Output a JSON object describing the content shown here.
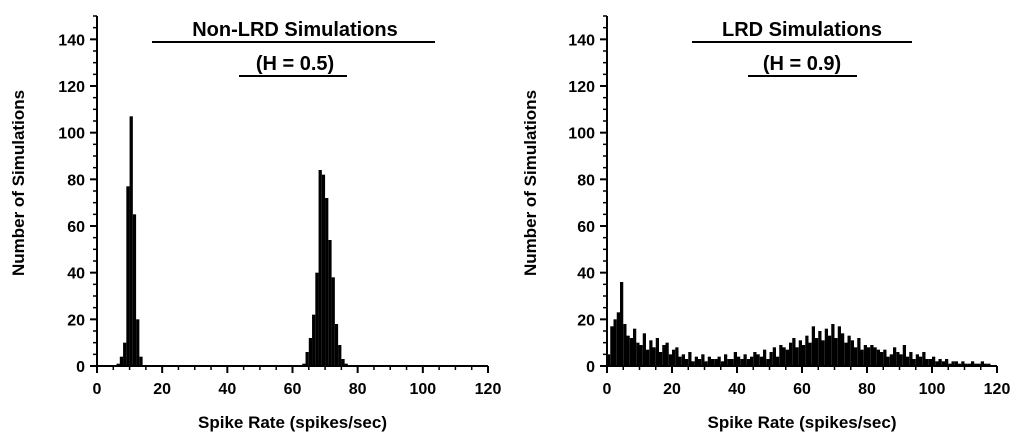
{
  "chart_data": [
    {
      "type": "bar",
      "title": "Non-LRD Simulations",
      "subtitle": "(H = 0.5)",
      "xlabel": "Spike Rate (spikes/sec)",
      "ylabel": "Number of Simulations",
      "xlim": [
        0,
        120
      ],
      "ylim": [
        0,
        150
      ],
      "xticks": [
        0,
        20,
        40,
        60,
        80,
        100,
        120
      ],
      "yticks": [
        0,
        20,
        40,
        60,
        80,
        100,
        120,
        140
      ],
      "bin_width": 1,
      "x": [
        6.5,
        7.5,
        8.5,
        9.5,
        10.5,
        11.5,
        12.5,
        13.5,
        63.5,
        64.5,
        65.5,
        66.5,
        67.5,
        68.5,
        69.5,
        70.5,
        71.5,
        72.5,
        73.5,
        74.5,
        75.5,
        76.5
      ],
      "values": [
        1,
        4,
        10,
        77,
        107,
        65,
        20,
        4,
        1,
        6,
        12,
        22,
        40,
        84,
        82,
        72,
        54,
        38,
        18,
        9,
        3,
        1
      ]
    },
    {
      "type": "bar",
      "title": "LRD Simulations",
      "subtitle": "(H = 0.9)",
      "xlabel": "Spike Rate (spikes/sec)",
      "ylabel": "Number of Simulations",
      "xlim": [
        0,
        120
      ],
      "ylim": [
        0,
        150
      ],
      "xticks": [
        0,
        20,
        40,
        60,
        80,
        100,
        120
      ],
      "yticks": [
        0,
        20,
        40,
        60,
        80,
        100,
        120,
        140
      ],
      "bin_width": 1,
      "x": [
        0.5,
        1.5,
        2.5,
        3.5,
        4.5,
        5.5,
        6.5,
        7.5,
        8.5,
        9.5,
        10.5,
        11.5,
        12.5,
        13.5,
        14.5,
        15.5,
        16.5,
        17.5,
        18.5,
        19.5,
        20.5,
        21.5,
        22.5,
        23.5,
        24.5,
        25.5,
        26.5,
        27.5,
        28.5,
        29.5,
        30.5,
        31.5,
        32.5,
        33.5,
        34.5,
        35.5,
        36.5,
        37.5,
        38.5,
        39.5,
        40.5,
        41.5,
        42.5,
        43.5,
        44.5,
        45.5,
        46.5,
        47.5,
        48.5,
        49.5,
        50.5,
        51.5,
        52.5,
        53.5,
        54.5,
        55.5,
        56.5,
        57.5,
        58.5,
        59.5,
        60.5,
        61.5,
        62.5,
        63.5,
        64.5,
        65.5,
        66.5,
        67.5,
        68.5,
        69.5,
        70.5,
        71.5,
        72.5,
        73.5,
        74.5,
        75.5,
        76.5,
        77.5,
        78.5,
        79.5,
        80.5,
        81.5,
        82.5,
        83.5,
        84.5,
        85.5,
        86.5,
        87.5,
        88.5,
        89.5,
        90.5,
        91.5,
        92.5,
        93.5,
        94.5,
        95.5,
        96.5,
        97.5,
        98.5,
        99.5,
        100.5,
        101.5,
        102.5,
        103.5,
        104.5,
        105.5,
        106.5,
        107.5,
        108.5,
        109.5,
        110.5,
        111.5,
        112.5,
        113.5,
        114.5,
        115.5,
        116.5,
        117.5
      ],
      "values": [
        5,
        17,
        20,
        23,
        36,
        18,
        13,
        12,
        16,
        10,
        9,
        14,
        7,
        11,
        8,
        12,
        6,
        9,
        10,
        5,
        7,
        8,
        4,
        5,
        3,
        6,
        2,
        4,
        3,
        5,
        2,
        4,
        3,
        3,
        4,
        2,
        5,
        3,
        3,
        6,
        4,
        3,
        5,
        3,
        4,
        6,
        5,
        4,
        7,
        3,
        6,
        8,
        4,
        9,
        8,
        7,
        10,
        12,
        8,
        11,
        9,
        13,
        10,
        17,
        12,
        15,
        11,
        16,
        13,
        18,
        12,
        17,
        14,
        10,
        13,
        11,
        8,
        12,
        7,
        9,
        8,
        9,
        8,
        7,
        6,
        7,
        4,
        5,
        8,
        6,
        5,
        9,
        4,
        6,
        3,
        5,
        4,
        6,
        3,
        3,
        4,
        2,
        3,
        2,
        3,
        1,
        2,
        2,
        1,
        2,
        1,
        1,
        2,
        1,
        1,
        2,
        1,
        1
      ]
    }
  ]
}
